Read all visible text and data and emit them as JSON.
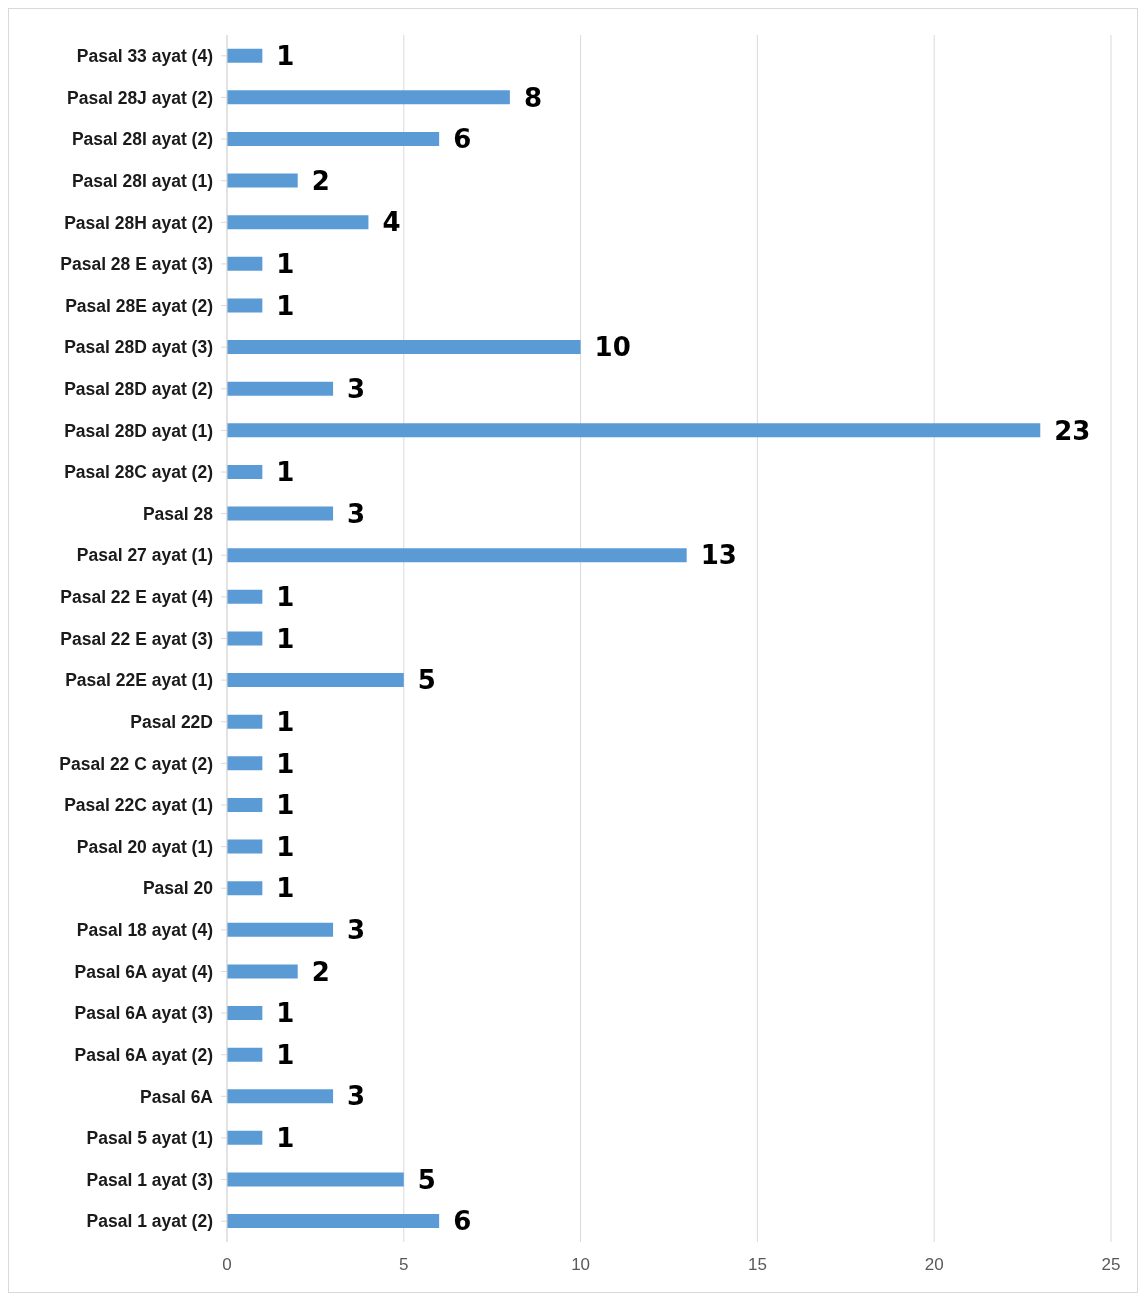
{
  "chart_data": {
    "type": "bar",
    "orientation": "horizontal",
    "categories": [
      "Pasal 33 ayat (4)",
      "Pasal 28J ayat (2)",
      "Pasal 28I ayat (2)",
      "Pasal 28I ayat (1)",
      "Pasal 28H ayat (2)",
      "Pasal 28 E ayat (3)",
      "Pasal 28E ayat (2)",
      "Pasal 28D ayat (3)",
      "Pasal 28D ayat (2)",
      "Pasal 28D ayat (1)",
      "Pasal 28C ayat (2)",
      "Pasal 28",
      "Pasal 27 ayat (1)",
      "Pasal 22 E ayat (4)",
      "Pasal 22 E ayat (3)",
      "Pasal 22E ayat (1)",
      "Pasal 22D",
      "Pasal 22 C ayat (2)",
      "Pasal 22C ayat (1)",
      "Pasal 20 ayat (1)",
      "Pasal 20",
      "Pasal 18 ayat (4)",
      "Pasal 6A ayat (4)",
      "Pasal 6A ayat (3)",
      "Pasal 6A ayat (2)",
      "Pasal 6A",
      "Pasal 5 ayat (1)",
      "Pasal 1 ayat (3)",
      "Pasal 1 ayat (2)"
    ],
    "values": [
      1,
      8,
      6,
      2,
      4,
      1,
      1,
      10,
      3,
      23,
      1,
      3,
      13,
      1,
      1,
      5,
      1,
      1,
      1,
      1,
      1,
      3,
      2,
      1,
      1,
      3,
      1,
      5,
      6
    ],
    "color": "#5b9bd5",
    "xlim": [
      0,
      25
    ],
    "xticks": [
      0,
      5,
      10,
      15,
      20,
      25
    ],
    "grid": "x",
    "data_labels": true
  }
}
